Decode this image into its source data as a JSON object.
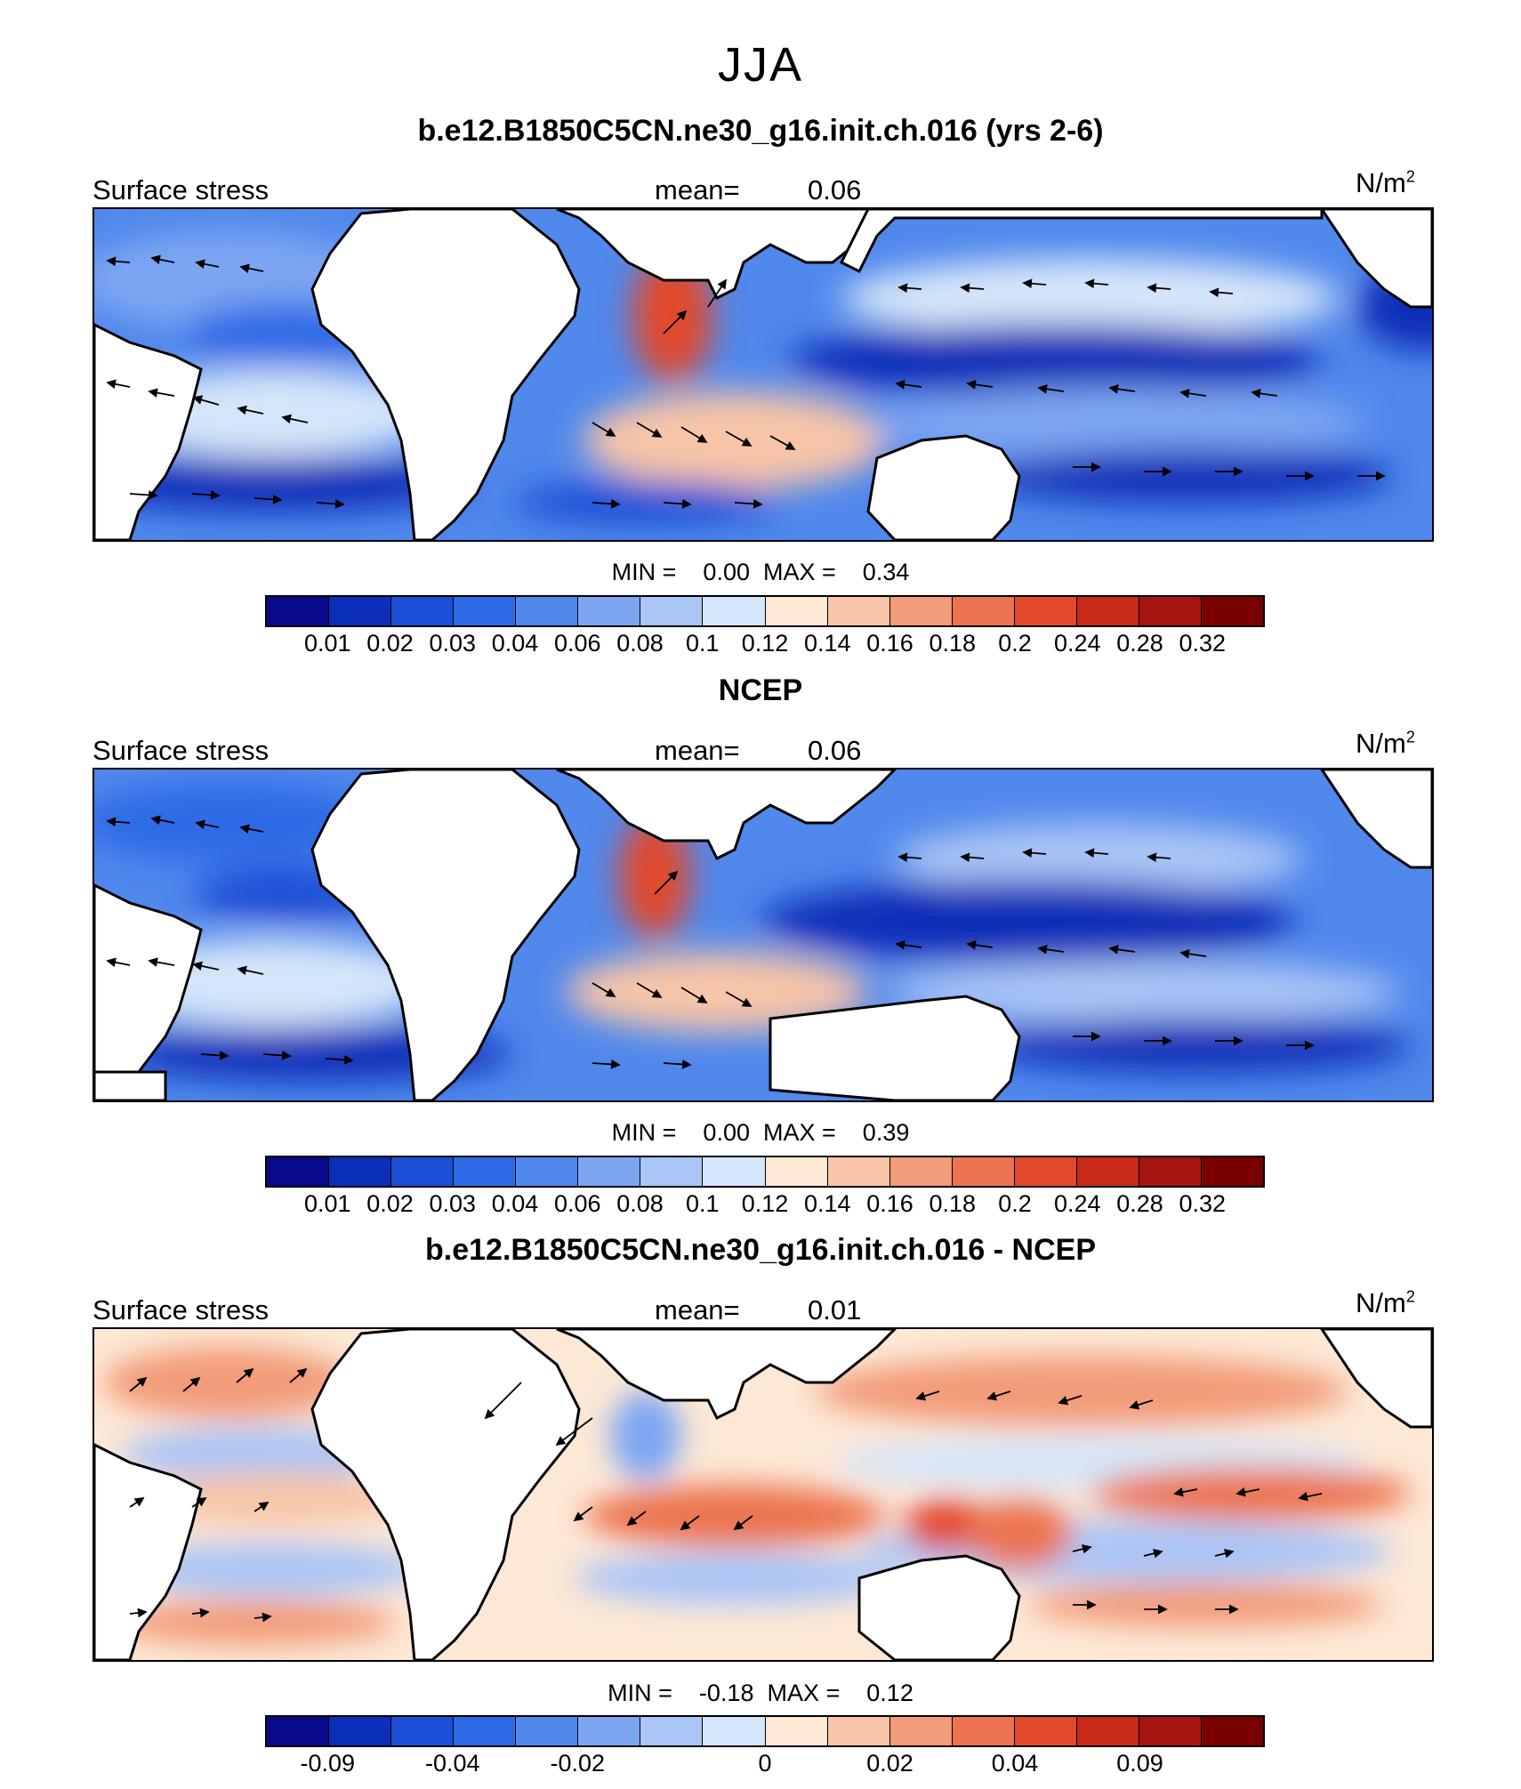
{
  "season": "JJA",
  "colorbar_colors": [
    "#08088a",
    "#0b2fb8",
    "#1a4fd6",
    "#2f6ae6",
    "#5088ec",
    "#7da6f2",
    "#aac5f6",
    "#d6e6fa",
    "#fde8d6",
    "#f8c5a8",
    "#f29b78",
    "#ec7450",
    "#e34a2c",
    "#c92a18",
    "#a3150e",
    "#7a0000"
  ],
  "panels": [
    {
      "title": "b.e12.B1850C5CN.ne30_g16.init.ch.016 (yrs 2-6)",
      "variable": "Surface stress",
      "mean_label": "mean=",
      "mean_value": "0.06",
      "unit": "N/m",
      "unit_sup": "2",
      "min_label": "MIN =",
      "min_value": "0.00",
      "max_label": "MAX =",
      "max_value": "0.34",
      "colorbar_labels": [
        "0.01",
        "0.02",
        "0.03",
        "0.04",
        "0.06",
        "0.08",
        "0.1",
        "0.12",
        "0.14",
        "0.16",
        "0.18",
        "0.2",
        "0.24",
        "0.28",
        "0.32"
      ]
    },
    {
      "title": "NCEP",
      "variable": "Surface stress",
      "mean_label": "mean=",
      "mean_value": "0.06",
      "unit": "N/m",
      "unit_sup": "2",
      "min_label": "MIN =",
      "min_value": "0.00",
      "max_label": "MAX =",
      "max_value": "0.39",
      "colorbar_labels": [
        "0.01",
        "0.02",
        "0.03",
        "0.04",
        "0.06",
        "0.08",
        "0.1",
        "0.12",
        "0.14",
        "0.16",
        "0.18",
        "0.2",
        "0.24",
        "0.28",
        "0.32"
      ]
    },
    {
      "title": "b.e12.B1850C5CN.ne30_g16.init.ch.016 - NCEP",
      "variable": "Surface stress",
      "mean_label": "mean=",
      "mean_value": "0.01",
      "unit": "N/m",
      "unit_sup": "2",
      "min_label": "MIN =",
      "min_value": "-0.18",
      "max_label": "MAX =",
      "max_value": "0.12",
      "colorbar_labels": [
        "-0.09",
        "-0.04",
        "-0.02",
        "0",
        "0.02",
        "0.04",
        "0.09"
      ]
    }
  ]
}
